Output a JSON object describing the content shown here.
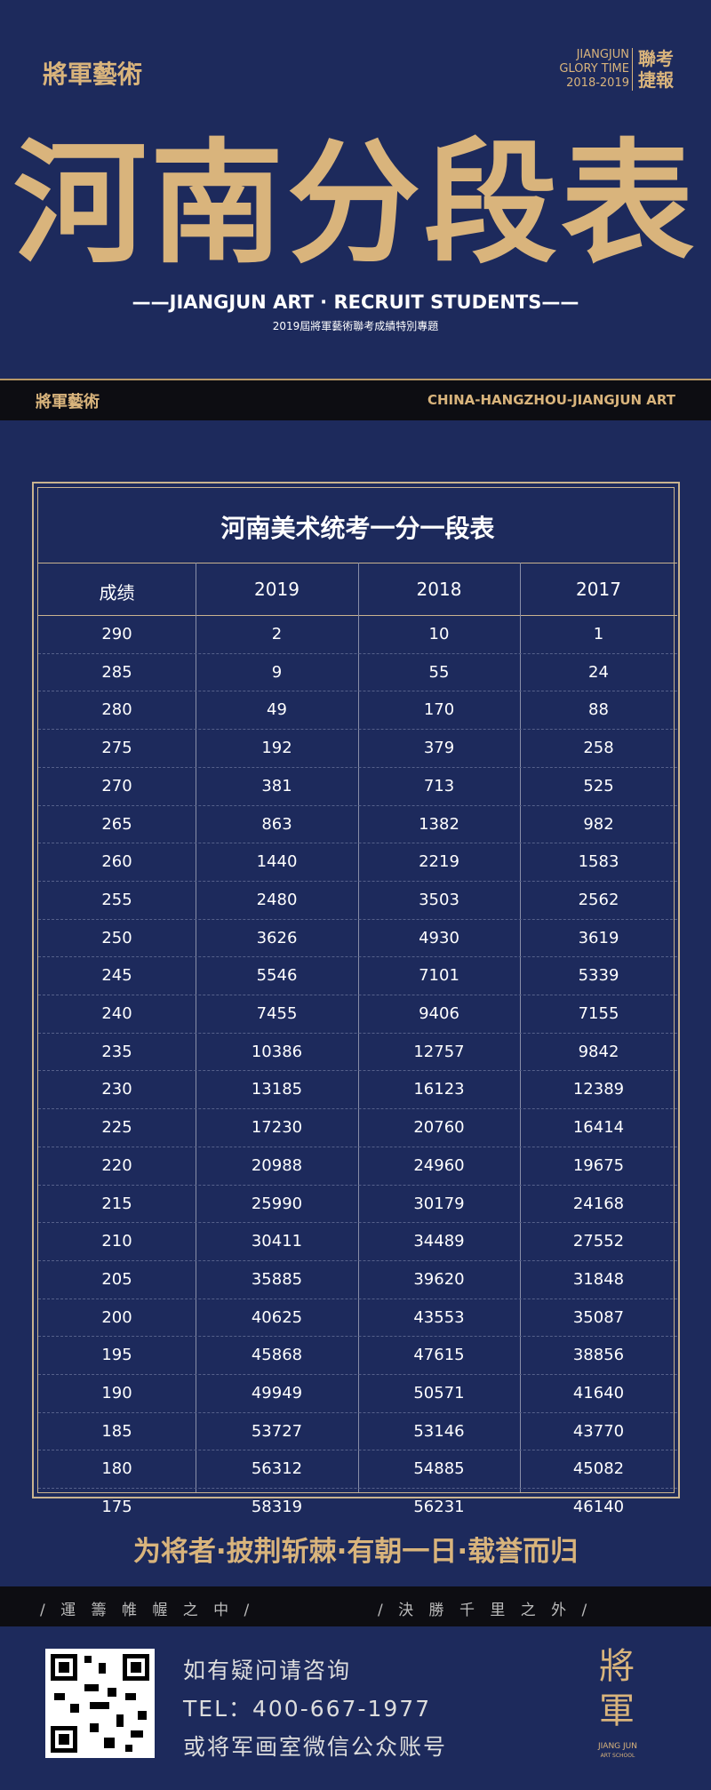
{
  "header": {
    "logo": "將軍藝術",
    "brand_lines": [
      "JIANGJUN",
      "GLORY TIME",
      "2018-2019"
    ],
    "badge": "聯考捷報",
    "title": "河南分段表",
    "tagline": "——JIANGJUN ART · RECRUIT STUDENTS——",
    "subtitle": "2019屆將軍藝術聯考成績特別專題"
  },
  "strip": {
    "logo": "將軍藝術",
    "location": "CHINA-HANGZHOU-JIANGJUN ART"
  },
  "table": {
    "title": "河南美术统考一分一段表",
    "columns": [
      "成绩",
      "2019",
      "2018",
      "2017"
    ],
    "rows": [
      [
        290,
        2,
        10,
        1
      ],
      [
        285,
        9,
        55,
        24
      ],
      [
        280,
        49,
        170,
        88
      ],
      [
        275,
        192,
        379,
        258
      ],
      [
        270,
        381,
        713,
        525
      ],
      [
        265,
        863,
        1382,
        982
      ],
      [
        260,
        1440,
        2219,
        1583
      ],
      [
        255,
        2480,
        3503,
        2562
      ],
      [
        250,
        3626,
        4930,
        3619
      ],
      [
        245,
        5546,
        7101,
        5339
      ],
      [
        240,
        7455,
        9406,
        7155
      ],
      [
        235,
        10386,
        12757,
        9842
      ],
      [
        230,
        13185,
        16123,
        12389
      ],
      [
        225,
        17230,
        20760,
        16414
      ],
      [
        220,
        20988,
        24960,
        19675
      ],
      [
        215,
        25990,
        30179,
        24168
      ],
      [
        210,
        30411,
        34489,
        27552
      ],
      [
        205,
        35885,
        39620,
        31848
      ],
      [
        200,
        40625,
        43553,
        35087
      ],
      [
        195,
        45868,
        47615,
        38856
      ],
      [
        190,
        49949,
        50571,
        41640
      ],
      [
        185,
        53727,
        53146,
        43770
      ],
      [
        180,
        56312,
        54885,
        45082
      ],
      [
        175,
        58319,
        56231,
        46140
      ]
    ]
  },
  "slogan": "为将者·披荆斩棘·有朝一日·载誉而归",
  "motto": [
    "/ 運 籌 帷 幄 之 中 /",
    "/ 決 勝 千 里 之 外 /"
  ],
  "footer": {
    "lines": [
      "如有疑问请咨询",
      "TEL：400-667-1977",
      "或将军画室微信公众账号"
    ],
    "logo": "將軍",
    "logo_sub": "JIANG JUN",
    "logo_sub2": "ART SCHOOL"
  }
}
